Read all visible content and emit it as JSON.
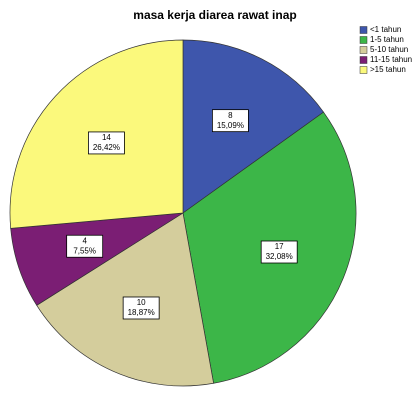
{
  "chart_data": {
    "type": "pie",
    "title": "masa kerja diarea rawat inap",
    "categories": [
      "<1 tahun",
      "1-5 tahun",
      "5-10 tahun",
      "11-15 tahun",
      ">15 tahun"
    ],
    "values": [
      8,
      17,
      10,
      4,
      14
    ],
    "percent_values": [
      15.09,
      32.08,
      18.87,
      7.55,
      26.42
    ],
    "percent_labels": [
      "15,09%",
      "32,08%",
      "18,87%",
      "7,55%",
      "26,42%"
    ],
    "colors": [
      "#3e56ac",
      "#3cb648",
      "#d4cd9c",
      "#7b1e74",
      "#fbf97c"
    ],
    "legend": "top-right"
  }
}
